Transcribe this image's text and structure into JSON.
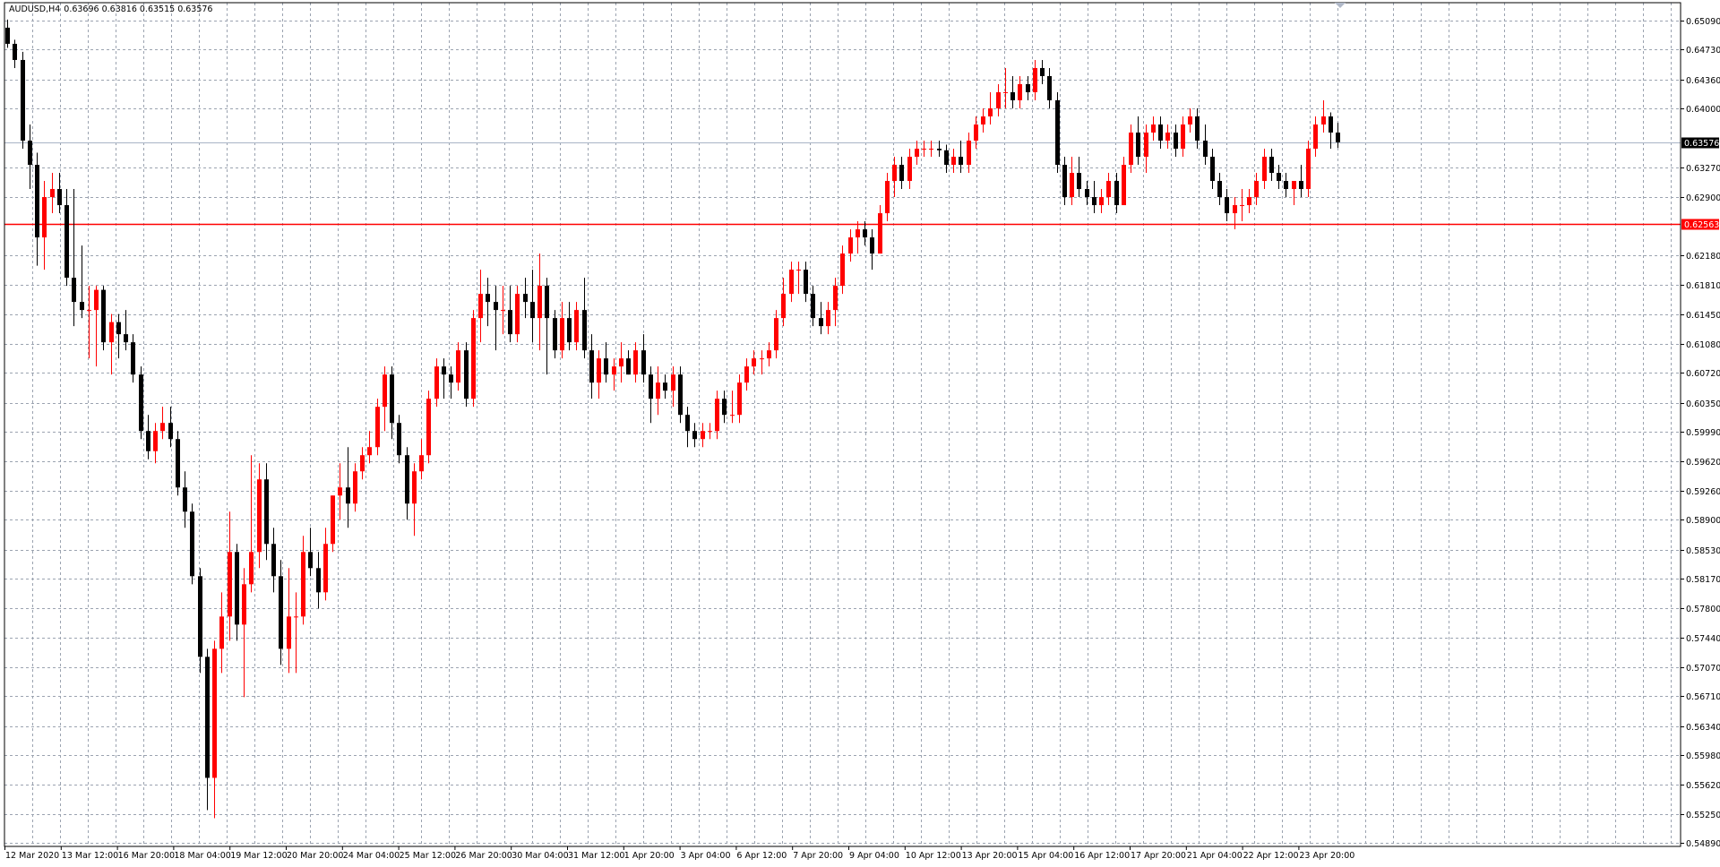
{
  "chart_data": {
    "type": "candlestick",
    "symbol": "AUDUSD,H4",
    "ohlc_header": "0.63696 0.63816 0.63515 0.63576",
    "last_price": 0.63576,
    "last_price_label": "0.63576",
    "horizontal_line": 0.62563,
    "horizontal_line_label": "0.62563",
    "ylim": [
      0.5485,
      0.6531
    ],
    "y_ticks": [
      "0.65090",
      "0.64730",
      "0.64360",
      "0.64000",
      "0.63270",
      "0.62900",
      "0.62180",
      "0.61810",
      "0.61450",
      "0.61080",
      "0.60720",
      "0.60350",
      "0.59990",
      "0.59620",
      "0.59260",
      "0.58900",
      "0.58530",
      "0.58170",
      "0.57800",
      "0.57440",
      "0.57070",
      "0.56710",
      "0.56340",
      "0.55980",
      "0.55620",
      "0.55250",
      "0.54890"
    ],
    "x_ticks": [
      "12 Mar 2020",
      "13 Mar 12:00",
      "16 Mar 20:00",
      "18 Mar 04:00",
      "19 Mar 12:00",
      "20 Mar 20:00",
      "24 Mar 04:00",
      "25 Mar 12:00",
      "26 Mar 20:00",
      "30 Mar 04:00",
      "31 Mar 12:00",
      "1 Apr 20:00",
      "3 Apr 04:00",
      "6 Apr 12:00",
      "7 Apr 20:00",
      "9 Apr 04:00",
      "10 Apr 12:00",
      "13 Apr 20:00",
      "15 Apr 04:00",
      "16 Apr 12:00",
      "17 Apr 20:00",
      "21 Apr 04:00",
      "22 Apr 12:00",
      "23 Apr 20:00"
    ],
    "grid": true,
    "colors": {
      "bull": "#ff0000",
      "bear": "#000000",
      "hline": "#ff0000",
      "last_line": "#a9b4c6"
    },
    "candles": [
      [
        0.65,
        0.651,
        0.6475,
        0.648
      ],
      [
        0.648,
        0.6485,
        0.645,
        0.646
      ],
      [
        0.646,
        0.647,
        0.635,
        0.636
      ],
      [
        0.636,
        0.638,
        0.63,
        0.633
      ],
      [
        0.633,
        0.6345,
        0.6205,
        0.624
      ],
      [
        0.624,
        0.631,
        0.62,
        0.629
      ],
      [
        0.629,
        0.632,
        0.627,
        0.63
      ],
      [
        0.63,
        0.632,
        0.627,
        0.628
      ],
      [
        0.628,
        0.63,
        0.618,
        0.619
      ],
      [
        0.619,
        0.63,
        0.613,
        0.616
      ],
      [
        0.616,
        0.623,
        0.614,
        0.615
      ],
      [
        0.615,
        0.618,
        0.609,
        0.615
      ],
      [
        0.615,
        0.618,
        0.608,
        0.6175
      ],
      [
        0.6175,
        0.618,
        0.61,
        0.611
      ],
      [
        0.611,
        0.6145,
        0.607,
        0.6135
      ],
      [
        0.6135,
        0.6145,
        0.609,
        0.612
      ],
      [
        0.612,
        0.615,
        0.61,
        0.611
      ],
      [
        0.611,
        0.612,
        0.606,
        0.607
      ],
      [
        0.607,
        0.608,
        0.599,
        0.6
      ],
      [
        0.6,
        0.602,
        0.5965,
        0.5975
      ],
      [
        0.5975,
        0.601,
        0.596,
        0.6
      ],
      [
        0.6,
        0.603,
        0.599,
        0.601
      ],
      [
        0.601,
        0.603,
        0.598,
        0.599
      ],
      [
        0.599,
        0.6,
        0.592,
        0.593
      ],
      [
        0.593,
        0.595,
        0.588,
        0.59
      ],
      [
        0.59,
        0.591,
        0.581,
        0.582
      ],
      [
        0.582,
        0.583,
        0.57,
        0.572
      ],
      [
        0.572,
        0.573,
        0.553,
        0.557
      ],
      [
        0.557,
        0.574,
        0.552,
        0.573
      ],
      [
        0.573,
        0.58,
        0.57,
        0.577
      ],
      [
        0.577,
        0.59,
        0.574,
        0.585
      ],
      [
        0.585,
        0.586,
        0.574,
        0.576
      ],
      [
        0.576,
        0.583,
        0.567,
        0.581
      ],
      [
        0.581,
        0.597,
        0.58,
        0.585
      ],
      [
        0.585,
        0.596,
        0.583,
        0.594
      ],
      [
        0.594,
        0.596,
        0.584,
        0.586
      ],
      [
        0.586,
        0.588,
        0.58,
        0.582
      ],
      [
        0.582,
        0.584,
        0.571,
        0.573
      ],
      [
        0.573,
        0.583,
        0.57,
        0.577
      ],
      [
        0.577,
        0.58,
        0.57,
        0.577
      ],
      [
        0.577,
        0.587,
        0.576,
        0.585
      ],
      [
        0.585,
        0.588,
        0.582,
        0.583
      ],
      [
        0.583,
        0.585,
        0.578,
        0.58
      ],
      [
        0.58,
        0.588,
        0.579,
        0.586
      ],
      [
        0.586,
        0.592,
        0.585,
        0.592
      ],
      [
        0.592,
        0.596,
        0.589,
        0.593
      ],
      [
        0.593,
        0.598,
        0.588,
        0.591
      ],
      [
        0.591,
        0.596,
        0.59,
        0.595
      ],
      [
        0.595,
        0.598,
        0.594,
        0.597
      ],
      [
        0.597,
        0.6,
        0.596,
        0.598
      ],
      [
        0.598,
        0.604,
        0.597,
        0.603
      ],
      [
        0.603,
        0.608,
        0.6,
        0.607
      ],
      [
        0.607,
        0.608,
        0.599,
        0.601
      ],
      [
        0.601,
        0.602,
        0.596,
        0.597
      ],
      [
        0.597,
        0.598,
        0.589,
        0.591
      ],
      [
        0.591,
        0.596,
        0.587,
        0.595
      ],
      [
        0.595,
        0.599,
        0.594,
        0.597
      ],
      [
        0.597,
        0.605,
        0.596,
        0.604
      ],
      [
        0.604,
        0.609,
        0.603,
        0.608
      ],
      [
        0.608,
        0.609,
        0.604,
        0.607
      ],
      [
        0.607,
        0.608,
        0.604,
        0.606
      ],
      [
        0.606,
        0.611,
        0.605,
        0.61
      ],
      [
        0.61,
        0.611,
        0.603,
        0.604
      ],
      [
        0.604,
        0.615,
        0.603,
        0.614
      ],
      [
        0.614,
        0.62,
        0.611,
        0.617
      ],
      [
        0.617,
        0.619,
        0.613,
        0.616
      ],
      [
        0.616,
        0.618,
        0.61,
        0.615
      ],
      [
        0.615,
        0.618,
        0.612,
        0.615
      ],
      [
        0.615,
        0.618,
        0.611,
        0.612
      ],
      [
        0.612,
        0.618,
        0.611,
        0.617
      ],
      [
        0.617,
        0.619,
        0.614,
        0.616
      ],
      [
        0.616,
        0.62,
        0.611,
        0.614
      ],
      [
        0.614,
        0.622,
        0.61,
        0.618
      ],
      [
        0.618,
        0.619,
        0.607,
        0.614
      ],
      [
        0.614,
        0.615,
        0.609,
        0.61
      ],
      [
        0.61,
        0.616,
        0.609,
        0.614
      ],
      [
        0.614,
        0.616,
        0.61,
        0.611
      ],
      [
        0.611,
        0.616,
        0.61,
        0.615
      ],
      [
        0.615,
        0.619,
        0.609,
        0.61
      ],
      [
        0.61,
        0.612,
        0.604,
        0.606
      ],
      [
        0.606,
        0.61,
        0.604,
        0.609
      ],
      [
        0.609,
        0.611,
        0.606,
        0.607
      ],
      [
        0.607,
        0.609,
        0.605,
        0.608
      ],
      [
        0.608,
        0.611,
        0.606,
        0.609
      ],
      [
        0.609,
        0.61,
        0.607,
        0.607
      ],
      [
        0.607,
        0.611,
        0.606,
        0.61
      ],
      [
        0.61,
        0.612,
        0.606,
        0.607
      ],
      [
        0.607,
        0.608,
        0.601,
        0.604
      ],
      [
        0.604,
        0.608,
        0.602,
        0.606
      ],
      [
        0.606,
        0.607,
        0.604,
        0.605
      ],
      [
        0.605,
        0.608,
        0.603,
        0.607
      ],
      [
        0.607,
        0.608,
        0.601,
        0.602
      ],
      [
        0.602,
        0.603,
        0.598,
        0.6
      ],
      [
        0.6,
        0.601,
        0.598,
        0.599
      ],
      [
        0.599,
        0.601,
        0.598,
        0.6
      ],
      [
        0.6,
        0.601,
        0.599,
        0.6
      ],
      [
        0.6,
        0.605,
        0.599,
        0.604
      ],
      [
        0.604,
        0.605,
        0.601,
        0.602
      ],
      [
        0.602,
        0.605,
        0.601,
        0.602
      ],
      [
        0.602,
        0.607,
        0.601,
        0.606
      ],
      [
        0.606,
        0.609,
        0.605,
        0.608
      ],
      [
        0.608,
        0.61,
        0.607,
        0.609
      ],
      [
        0.609,
        0.61,
        0.607,
        0.609
      ],
      [
        0.609,
        0.611,
        0.608,
        0.61
      ],
      [
        0.61,
        0.615,
        0.609,
        0.614
      ],
      [
        0.614,
        0.619,
        0.613,
        0.617
      ],
      [
        0.617,
        0.621,
        0.616,
        0.62
      ],
      [
        0.62,
        0.621,
        0.617,
        0.62
      ],
      [
        0.62,
        0.621,
        0.616,
        0.617
      ],
      [
        0.617,
        0.618,
        0.613,
        0.614
      ],
      [
        0.614,
        0.616,
        0.612,
        0.613
      ],
      [
        0.613,
        0.616,
        0.612,
        0.615
      ],
      [
        0.615,
        0.619,
        0.613,
        0.618
      ],
      [
        0.618,
        0.623,
        0.617,
        0.622
      ],
      [
        0.622,
        0.625,
        0.621,
        0.624
      ],
      [
        0.624,
        0.626,
        0.622,
        0.625
      ],
      [
        0.625,
        0.626,
        0.623,
        0.624
      ],
      [
        0.624,
        0.625,
        0.62,
        0.622
      ],
      [
        0.622,
        0.628,
        0.622,
        0.627
      ],
      [
        0.627,
        0.632,
        0.626,
        0.631
      ],
      [
        0.631,
        0.634,
        0.629,
        0.633
      ],
      [
        0.633,
        0.634,
        0.63,
        0.631
      ],
      [
        0.631,
        0.635,
        0.63,
        0.634
      ],
      [
        0.634,
        0.636,
        0.633,
        0.635
      ],
      [
        0.635,
        0.636,
        0.634,
        0.635
      ],
      [
        0.635,
        0.636,
        0.634,
        0.635
      ],
      [
        0.635,
        0.636,
        0.634,
        0.6348
      ],
      [
        0.6348,
        0.6355,
        0.632,
        0.633
      ],
      [
        0.633,
        0.635,
        0.632,
        0.634
      ],
      [
        0.634,
        0.636,
        0.632,
        0.633
      ],
      [
        0.633,
        0.637,
        0.632,
        0.636
      ],
      [
        0.636,
        0.639,
        0.635,
        0.638
      ],
      [
        0.638,
        0.64,
        0.637,
        0.639
      ],
      [
        0.639,
        0.642,
        0.638,
        0.64
      ],
      [
        0.64,
        0.643,
        0.639,
        0.642
      ],
      [
        0.642,
        0.645,
        0.64,
        0.642
      ],
      [
        0.642,
        0.644,
        0.64,
        0.641
      ],
      [
        0.641,
        0.644,
        0.64,
        0.643
      ],
      [
        0.643,
        0.644,
        0.641,
        0.642
      ],
      [
        0.642,
        0.646,
        0.641,
        0.645
      ],
      [
        0.645,
        0.646,
        0.643,
        0.644
      ],
      [
        0.644,
        0.645,
        0.64,
        0.641
      ],
      [
        0.641,
        0.642,
        0.632,
        0.633
      ],
      [
        0.633,
        0.634,
        0.628,
        0.629
      ],
      [
        0.629,
        0.634,
        0.628,
        0.632
      ],
      [
        0.632,
        0.634,
        0.629,
        0.63
      ],
      [
        0.63,
        0.631,
        0.628,
        0.629
      ],
      [
        0.629,
        0.631,
        0.627,
        0.628
      ],
      [
        0.628,
        0.63,
        0.627,
        0.629
      ],
      [
        0.629,
        0.632,
        0.628,
        0.631
      ],
      [
        0.631,
        0.632,
        0.627,
        0.628
      ],
      [
        0.628,
        0.634,
        0.628,
        0.633
      ],
      [
        0.633,
        0.638,
        0.632,
        0.637
      ],
      [
        0.637,
        0.639,
        0.633,
        0.634
      ],
      [
        0.634,
        0.638,
        0.632,
        0.637
      ],
      [
        0.637,
        0.639,
        0.636,
        0.638
      ],
      [
        0.638,
        0.639,
        0.635,
        0.636
      ],
      [
        0.636,
        0.638,
        0.635,
        0.637
      ],
      [
        0.637,
        0.638,
        0.634,
        0.635
      ],
      [
        0.635,
        0.639,
        0.634,
        0.638
      ],
      [
        0.638,
        0.64,
        0.637,
        0.639
      ],
      [
        0.639,
        0.64,
        0.635,
        0.636
      ],
      [
        0.636,
        0.638,
        0.633,
        0.634
      ],
      [
        0.634,
        0.635,
        0.63,
        0.631
      ],
      [
        0.631,
        0.632,
        0.628,
        0.629
      ],
      [
        0.629,
        0.63,
        0.626,
        0.627
      ],
      [
        0.627,
        0.629,
        0.625,
        0.628
      ],
      [
        0.628,
        0.63,
        0.626,
        0.628
      ],
      [
        0.628,
        0.63,
        0.627,
        0.629
      ],
      [
        0.629,
        0.632,
        0.628,
        0.631
      ],
      [
        0.631,
        0.635,
        0.63,
        0.634
      ],
      [
        0.634,
        0.635,
        0.631,
        0.632
      ],
      [
        0.632,
        0.633,
        0.63,
        0.631
      ],
      [
        0.631,
        0.632,
        0.629,
        0.63
      ],
      [
        0.63,
        0.631,
        0.628,
        0.631
      ],
      [
        0.631,
        0.633,
        0.629,
        0.63
      ],
      [
        0.63,
        0.636,
        0.629,
        0.635
      ],
      [
        0.635,
        0.639,
        0.634,
        0.638
      ],
      [
        0.638,
        0.641,
        0.637,
        0.639
      ],
      [
        0.639,
        0.6395,
        0.635,
        0.637
      ],
      [
        0.637,
        0.6382,
        0.6351,
        0.6358
      ]
    ]
  }
}
